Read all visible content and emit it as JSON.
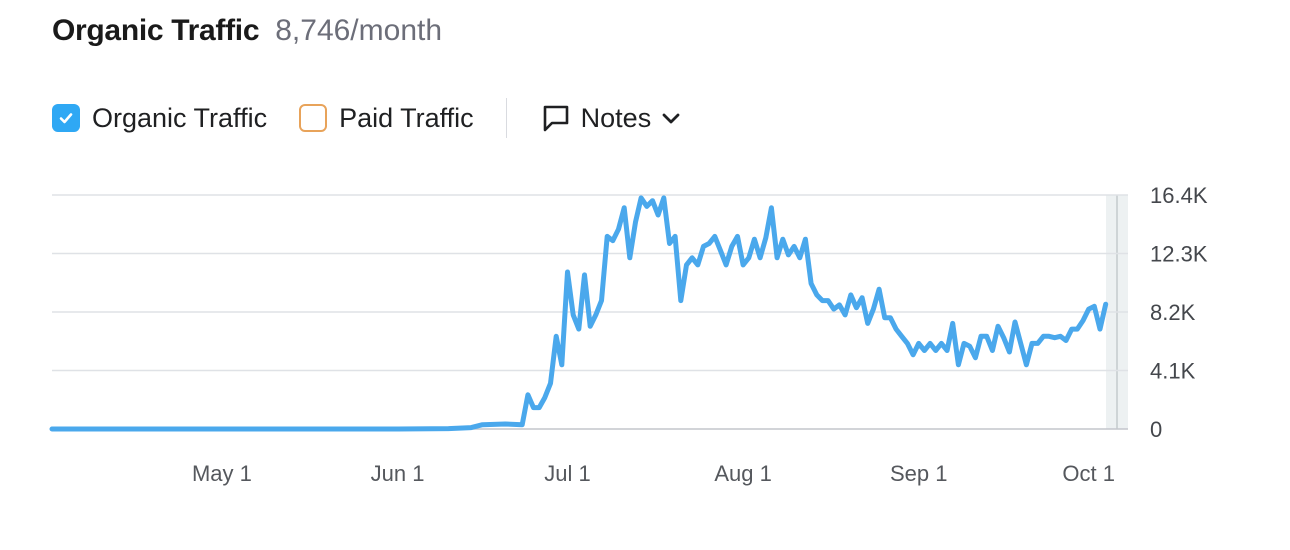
{
  "header": {
    "title": "Organic Traffic",
    "value": "8,746/month"
  },
  "toggles": [
    {
      "label": "Organic Traffic",
      "checked": true,
      "color": "#2fa8f4"
    },
    {
      "label": "Paid Traffic",
      "checked": false,
      "color": "#e8a35a"
    }
  ],
  "notes": {
    "label": "Notes",
    "icon": "comment-icon",
    "dropdown_icon": "chevron-down-icon"
  },
  "chart_data": {
    "type": "line",
    "title": "",
    "xlabel": "",
    "ylabel": "",
    "grid": true,
    "y_ticks": [
      {
        "label": "16.4K",
        "value": 16400
      },
      {
        "label": "12.3K",
        "value": 12300
      },
      {
        "label": "8.2K",
        "value": 8200
      },
      {
        "label": "4.1K",
        "value": 4100
      },
      {
        "label": "0",
        "value": 0
      }
    ],
    "x_ticks": [
      {
        "label": "May 1",
        "date": "2024-05-01"
      },
      {
        "label": "Jun 1",
        "date": "2024-06-01"
      },
      {
        "label": "Jul 1",
        "date": "2024-07-01"
      },
      {
        "label": "Aug 1",
        "date": "2024-08-01"
      },
      {
        "label": "Sep 1",
        "date": "2024-09-01"
      },
      {
        "label": "Oct 1",
        "date": "2024-10-01"
      }
    ],
    "xlim": [
      "2024-04-01",
      "2024-10-06"
    ],
    "ylim": [
      0,
      16400
    ],
    "series": [
      {
        "color": "#4aa8ec",
        "points": [
          [
            "2024-04-01",
            0
          ],
          [
            "2024-05-01",
            0
          ],
          [
            "2024-06-01",
            0
          ],
          [
            "2024-06-10",
            30
          ],
          [
            "2024-06-14",
            100
          ],
          [
            "2024-06-16",
            300
          ],
          [
            "2024-06-20",
            350
          ],
          [
            "2024-06-23",
            300
          ],
          [
            "2024-06-24",
            2400
          ],
          [
            "2024-06-25",
            1500
          ],
          [
            "2024-06-26",
            1500
          ],
          [
            "2024-06-27",
            2200
          ],
          [
            "2024-06-28",
            3200
          ],
          [
            "2024-06-29",
            6500
          ],
          [
            "2024-06-30",
            4500
          ],
          [
            "2024-07-01",
            11000
          ],
          [
            "2024-07-02",
            8000
          ],
          [
            "2024-07-03",
            7000
          ],
          [
            "2024-07-04",
            10800
          ],
          [
            "2024-07-05",
            7200
          ],
          [
            "2024-07-06",
            8000
          ],
          [
            "2024-07-07",
            9000
          ],
          [
            "2024-07-08",
            13500
          ],
          [
            "2024-07-09",
            13200
          ],
          [
            "2024-07-10",
            14000
          ],
          [
            "2024-07-11",
            15500
          ],
          [
            "2024-07-12",
            12000
          ],
          [
            "2024-07-13",
            14500
          ],
          [
            "2024-07-14",
            16200
          ],
          [
            "2024-07-15",
            15600
          ],
          [
            "2024-07-16",
            16000
          ],
          [
            "2024-07-17",
            15000
          ],
          [
            "2024-07-18",
            16200
          ],
          [
            "2024-07-19",
            13000
          ],
          [
            "2024-07-20",
            13500
          ],
          [
            "2024-07-21",
            9000
          ],
          [
            "2024-07-22",
            11500
          ],
          [
            "2024-07-23",
            12000
          ],
          [
            "2024-07-24",
            11500
          ],
          [
            "2024-07-25",
            12800
          ],
          [
            "2024-07-26",
            13000
          ],
          [
            "2024-07-27",
            13500
          ],
          [
            "2024-07-28",
            12500
          ],
          [
            "2024-07-29",
            11500
          ],
          [
            "2024-07-30",
            12800
          ],
          [
            "2024-07-31",
            13500
          ],
          [
            "2024-08-01",
            11500
          ],
          [
            "2024-08-02",
            12000
          ],
          [
            "2024-08-03",
            13300
          ],
          [
            "2024-08-04",
            12000
          ],
          [
            "2024-08-05",
            13400
          ],
          [
            "2024-08-06",
            15500
          ],
          [
            "2024-08-07",
            12000
          ],
          [
            "2024-08-08",
            13300
          ],
          [
            "2024-08-09",
            12200
          ],
          [
            "2024-08-10",
            12800
          ],
          [
            "2024-08-11",
            12000
          ],
          [
            "2024-08-12",
            13300
          ],
          [
            "2024-08-13",
            10200
          ],
          [
            "2024-08-14",
            9400
          ],
          [
            "2024-08-15",
            9000
          ],
          [
            "2024-08-16",
            9000
          ],
          [
            "2024-08-17",
            8400
          ],
          [
            "2024-08-18",
            8700
          ],
          [
            "2024-08-19",
            8000
          ],
          [
            "2024-08-20",
            9400
          ],
          [
            "2024-08-21",
            8500
          ],
          [
            "2024-08-22",
            9200
          ],
          [
            "2024-08-23",
            7400
          ],
          [
            "2024-08-24",
            8400
          ],
          [
            "2024-08-25",
            9800
          ],
          [
            "2024-08-26",
            7800
          ],
          [
            "2024-08-27",
            7800
          ],
          [
            "2024-08-28",
            7000
          ],
          [
            "2024-08-29",
            6500
          ],
          [
            "2024-08-30",
            6000
          ],
          [
            "2024-08-31",
            5200
          ],
          [
            "2024-09-01",
            6000
          ],
          [
            "2024-09-02",
            5500
          ],
          [
            "2024-09-03",
            6000
          ],
          [
            "2024-09-04",
            5500
          ],
          [
            "2024-09-05",
            6000
          ],
          [
            "2024-09-06",
            5500
          ],
          [
            "2024-09-07",
            7400
          ],
          [
            "2024-09-08",
            4500
          ],
          [
            "2024-09-09",
            6000
          ],
          [
            "2024-09-10",
            5800
          ],
          [
            "2024-09-11",
            5000
          ],
          [
            "2024-09-12",
            6500
          ],
          [
            "2024-09-13",
            6500
          ],
          [
            "2024-09-14",
            5500
          ],
          [
            "2024-09-15",
            7200
          ],
          [
            "2024-09-16",
            6400
          ],
          [
            "2024-09-17",
            5400
          ],
          [
            "2024-09-18",
            7500
          ],
          [
            "2024-09-19",
            6000
          ],
          [
            "2024-09-20",
            4500
          ],
          [
            "2024-09-21",
            6000
          ],
          [
            "2024-09-22",
            6000
          ],
          [
            "2024-09-23",
            6500
          ],
          [
            "2024-09-24",
            6500
          ],
          [
            "2024-09-25",
            6400
          ],
          [
            "2024-09-26",
            6500
          ],
          [
            "2024-09-27",
            6200
          ],
          [
            "2024-09-28",
            7000
          ],
          [
            "2024-09-29",
            7000
          ],
          [
            "2024-09-30",
            7600
          ],
          [
            "2024-10-01",
            8400
          ],
          [
            "2024-10-02",
            8600
          ],
          [
            "2024-10-03",
            7000
          ],
          [
            "2024-10-04",
            8746
          ]
        ]
      }
    ]
  }
}
